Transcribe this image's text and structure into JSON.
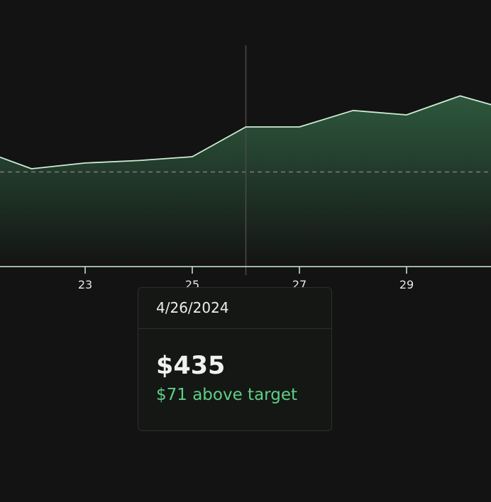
{
  "chart_data": {
    "type": "area",
    "x": [
      "21",
      "22",
      "23",
      "24",
      "25",
      "26",
      "27",
      "28",
      "29",
      "30",
      "31"
    ],
    "x_tick_labels": [
      "23",
      "25",
      "27",
      "29"
    ],
    "y_values": [
      400,
      369,
      378,
      382,
      388,
      435,
      435,
      461,
      454,
      484,
      460
    ],
    "target": 364,
    "highlight_index": 5,
    "colors": {
      "line": "#cdebd4",
      "area_top": "#2f5b3f",
      "target_line": "#7a7a7a",
      "axis": "#cdebd4",
      "crosshair": "#4a4a4a"
    }
  },
  "tooltip": {
    "date": "4/26/2024",
    "value": "$435",
    "delta": "$71 above target"
  }
}
